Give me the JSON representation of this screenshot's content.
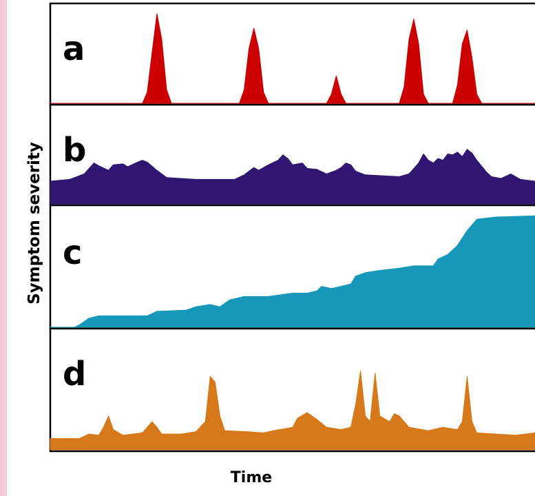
{
  "chart_data": {
    "type": "area",
    "ylabel": "Symptom severity",
    "xlabel": "Time",
    "x_range": [
      0,
      100
    ],
    "y_range": [
      0,
      100
    ],
    "grid": false,
    "legend": "none",
    "panels": [
      {
        "label": "a",
        "color": "#cc0000",
        "points": [
          [
            0,
            0
          ],
          [
            19,
            0
          ],
          [
            20,
            12
          ],
          [
            21,
            55
          ],
          [
            22,
            98
          ],
          [
            23,
            70
          ],
          [
            24,
            15
          ],
          [
            25,
            0
          ],
          [
            39,
            0
          ],
          [
            40,
            15
          ],
          [
            41,
            60
          ],
          [
            42,
            82
          ],
          [
            43,
            60
          ],
          [
            44,
            12
          ],
          [
            45,
            0
          ],
          [
            57,
            0
          ],
          [
            58,
            10
          ],
          [
            59,
            30
          ],
          [
            60,
            10
          ],
          [
            61,
            0
          ],
          [
            72,
            0
          ],
          [
            73,
            18
          ],
          [
            74,
            70
          ],
          [
            75,
            92
          ],
          [
            76,
            65
          ],
          [
            77,
            10
          ],
          [
            78,
            0
          ],
          [
            83,
            0
          ],
          [
            84,
            20
          ],
          [
            85,
            65
          ],
          [
            86,
            80
          ],
          [
            87,
            50
          ],
          [
            88,
            10
          ],
          [
            89,
            0
          ],
          [
            100,
            0
          ]
        ]
      },
      {
        "label": "b",
        "color": "#2f1670",
        "points": [
          [
            0,
            25
          ],
          [
            4,
            27
          ],
          [
            7,
            33
          ],
          [
            9,
            45
          ],
          [
            10,
            42
          ],
          [
            12,
            37
          ],
          [
            13,
            43
          ],
          [
            15,
            44
          ],
          [
            16,
            41
          ],
          [
            18,
            46
          ],
          [
            19,
            48
          ],
          [
            20,
            46
          ],
          [
            22,
            37
          ],
          [
            24,
            29
          ],
          [
            30,
            27
          ],
          [
            38,
            27
          ],
          [
            40,
            32
          ],
          [
            42,
            40
          ],
          [
            43,
            37
          ],
          [
            45,
            43
          ],
          [
            47,
            48
          ],
          [
            48,
            54
          ],
          [
            49,
            50
          ],
          [
            50,
            43
          ],
          [
            52,
            45
          ],
          [
            53,
            39
          ],
          [
            55,
            38
          ],
          [
            57,
            33
          ],
          [
            59,
            37
          ],
          [
            60,
            40
          ],
          [
            61,
            45
          ],
          [
            62,
            43
          ],
          [
            63,
            36
          ],
          [
            65,
            32
          ],
          [
            72,
            30
          ],
          [
            74,
            33
          ],
          [
            76,
            45
          ],
          [
            77,
            55
          ],
          [
            78,
            48
          ],
          [
            79,
            45
          ],
          [
            80,
            50
          ],
          [
            81,
            48
          ],
          [
            82,
            55
          ],
          [
            83,
            54
          ],
          [
            84,
            57
          ],
          [
            85,
            52
          ],
          [
            86,
            60
          ],
          [
            87,
            56
          ],
          [
            88,
            48
          ],
          [
            90,
            35
          ],
          [
            91,
            30
          ],
          [
            93,
            28
          ],
          [
            95,
            33
          ],
          [
            97,
            27
          ],
          [
            100,
            25
          ]
        ]
      },
      {
        "label": "c",
        "color": "#1797b9",
        "points": [
          [
            0,
            0
          ],
          [
            5,
            0
          ],
          [
            6,
            2
          ],
          [
            8,
            8
          ],
          [
            10,
            10
          ],
          [
            20,
            10
          ],
          [
            22,
            14
          ],
          [
            28,
            15
          ],
          [
            30,
            18
          ],
          [
            33,
            20
          ],
          [
            35,
            18
          ],
          [
            37,
            24
          ],
          [
            40,
            27
          ],
          [
            45,
            27
          ],
          [
            50,
            30
          ],
          [
            53,
            30
          ],
          [
            55,
            32
          ],
          [
            56,
            36
          ],
          [
            58,
            34
          ],
          [
            60,
            36
          ],
          [
            62,
            38
          ],
          [
            63,
            45
          ],
          [
            65,
            48
          ],
          [
            68,
            50
          ],
          [
            72,
            52
          ],
          [
            75,
            54
          ],
          [
            79,
            54
          ],
          [
            80,
            60
          ],
          [
            82,
            64
          ],
          [
            84,
            72
          ],
          [
            86,
            85
          ],
          [
            88,
            95
          ],
          [
            92,
            97
          ],
          [
            100,
            98
          ]
        ]
      },
      {
        "label": "d",
        "color": "#d5791b",
        "points": [
          [
            0,
            10
          ],
          [
            6,
            10
          ],
          [
            8,
            14
          ],
          [
            10,
            13
          ],
          [
            11,
            20
          ],
          [
            12,
            30
          ],
          [
            13,
            18
          ],
          [
            15,
            13
          ],
          [
            19,
            15
          ],
          [
            20,
            20
          ],
          [
            21,
            25
          ],
          [
            22,
            20
          ],
          [
            23,
            14
          ],
          [
            27,
            14
          ],
          [
            30,
            16
          ],
          [
            32,
            25
          ],
          [
            33,
            65
          ],
          [
            34,
            60
          ],
          [
            35,
            30
          ],
          [
            36,
            17
          ],
          [
            41,
            16
          ],
          [
            44,
            15
          ],
          [
            46,
            17
          ],
          [
            50,
            20
          ],
          [
            51,
            28
          ],
          [
            53,
            33
          ],
          [
            55,
            27
          ],
          [
            57,
            20
          ],
          [
            60,
            18
          ],
          [
            62,
            20
          ],
          [
            63,
            40
          ],
          [
            64,
            70
          ],
          [
            65,
            30
          ],
          [
            66,
            25
          ],
          [
            67,
            68
          ],
          [
            68,
            30
          ],
          [
            70,
            25
          ],
          [
            71,
            32
          ],
          [
            72,
            30
          ],
          [
            74,
            20
          ],
          [
            78,
            17
          ],
          [
            81,
            20
          ],
          [
            84,
            18
          ],
          [
            85,
            25
          ],
          [
            86,
            65
          ],
          [
            87,
            25
          ],
          [
            88,
            15
          ],
          [
            92,
            14
          ],
          [
            96,
            13
          ],
          [
            100,
            15
          ]
        ]
      }
    ]
  }
}
